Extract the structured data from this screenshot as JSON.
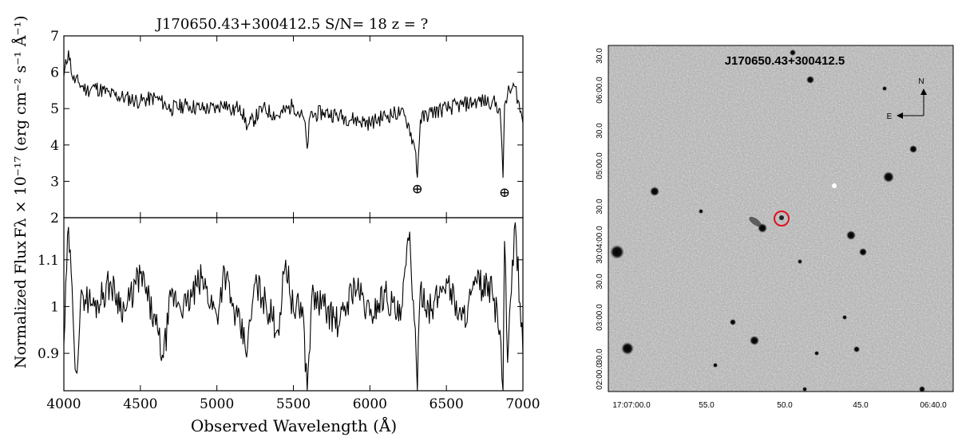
{
  "spectrum_panel": {
    "title": "J170650.43+300412.5  S/N= 18  z = ?",
    "top_ylabel": "Fλ × 10⁻¹⁷ (erg cm⁻² s⁻¹ Å⁻¹)",
    "bottom_ylabel": "Normalized Flux",
    "xlabel": "Observed Wavelength (Å)",
    "telluric_symbol": "⊕"
  },
  "image_panel": {
    "title": "J170650.43+300412.5",
    "compass_north": "N",
    "compass_east": "E",
    "ra_ticks": [
      "17:07:00.0",
      "55.0",
      "50.0",
      "45.0",
      "06:40.0"
    ],
    "dec_ticks": [
      "30.0",
      "06:00.0",
      "30.0",
      "05:00.0",
      "30.0",
      "30:04:00.0",
      "30.0",
      "03:00.0",
      "30.0",
      "02:00.0"
    ],
    "marker_color": "#e0101a"
  },
  "chart_data": [
    {
      "type": "line",
      "panel": "top",
      "title": "J170650.43+300412.5  S/N= 18  z = ?",
      "ylabel": "Fλ × 10⁻¹⁷ (erg cm⁻² s⁻¹ Å⁻¹)",
      "xlim": [
        4000,
        7000
      ],
      "ylim": [
        2,
        7
      ],
      "yticks": [
        2,
        3,
        4,
        5,
        6,
        7
      ],
      "x": [
        4000,
        4030,
        4060,
        4100,
        4150,
        4200,
        4300,
        4400,
        4500,
        4600,
        4700,
        4800,
        4900,
        5000,
        5050,
        5100,
        5150,
        5200,
        5300,
        5400,
        5500,
        5570,
        5590,
        5610,
        5700,
        5800,
        5900,
        6000,
        6100,
        6200,
        6250,
        6300,
        6310,
        6330,
        6400,
        6500,
        6600,
        6700,
        6800,
        6850,
        6870,
        6880,
        6900,
        6950,
        7000
      ],
      "y": [
        5.9,
        6.6,
        5.8,
        5.7,
        5.5,
        5.6,
        5.4,
        5.3,
        5.2,
        5.3,
        5.0,
        5.1,
        5.0,
        5.0,
        5.2,
        4.9,
        5.1,
        4.5,
        5.0,
        4.8,
        5.1,
        4.7,
        3.9,
        4.8,
        4.9,
        4.8,
        4.7,
        4.6,
        4.8,
        4.9,
        4.6,
        3.8,
        3.1,
        4.7,
        4.9,
        5.0,
        5.1,
        5.2,
        5.2,
        5.0,
        3.1,
        5.1,
        5.4,
        5.6,
        4.6
      ],
      "annotations": [
        {
          "text": "⊕",
          "x": 6310,
          "y": 2.8
        },
        {
          "text": "⊕",
          "x": 6880,
          "y": 2.7
        }
      ]
    },
    {
      "type": "line",
      "panel": "bottom",
      "xlabel": "Observed Wavelength (Å)",
      "ylabel": "Normalized Flux",
      "xlim": [
        4000,
        7000
      ],
      "ylim": [
        0.82,
        1.19
      ],
      "yticks": [
        0.9,
        1,
        1.1
      ],
      "xticks": [
        4000,
        4500,
        5000,
        5500,
        6000,
        6500,
        7000
      ],
      "x": [
        4000,
        4030,
        4060,
        4080,
        4120,
        4200,
        4300,
        4400,
        4500,
        4600,
        4650,
        4700,
        4800,
        4900,
        5000,
        5050,
        5100,
        5200,
        5250,
        5300,
        5400,
        5450,
        5500,
        5560,
        5590,
        5620,
        5700,
        5800,
        5900,
        6000,
        6100,
        6200,
        6260,
        6290,
        6310,
        6330,
        6400,
        6500,
        6600,
        6700,
        6800,
        6850,
        6870,
        6880,
        6900,
        6950,
        7000
      ],
      "y": [
        0.92,
        1.17,
        0.98,
        0.86,
        1.03,
        1.0,
        1.05,
        0.99,
        1.07,
        0.96,
        0.89,
        1.02,
        1.0,
        1.06,
        0.98,
        1.08,
        1.0,
        0.91,
        1.05,
        1.02,
        0.95,
        1.1,
        0.99,
        1.0,
        0.82,
        1.02,
        1.0,
        0.96,
        1.05,
        0.98,
        1.03,
        0.97,
        1.16,
        0.97,
        0.82,
        1.04,
        0.99,
        1.06,
        0.97,
        1.05,
        1.03,
        0.95,
        0.82,
        1.14,
        0.88,
        1.18,
        0.9
      ]
    }
  ]
}
